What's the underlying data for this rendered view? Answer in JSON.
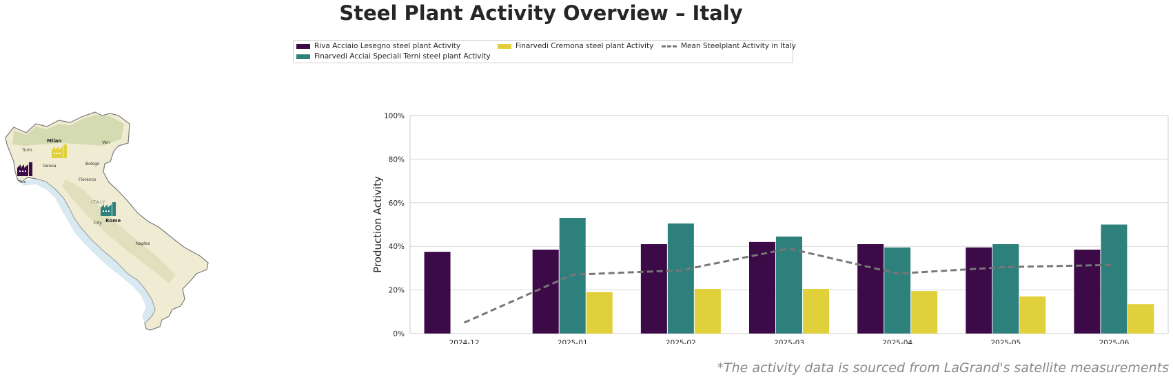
{
  "title": "Steel Plant Activity Overview – Italy",
  "footnote": "*The activity data is sourced from LaGrand's satellite measurements",
  "legend": {
    "items": [
      {
        "label": "Riva Acciaio Lesegno steel plant Activity",
        "color": "#3b0a47",
        "kind": "bar"
      },
      {
        "label": "Finarvedi Acciai Speciali Terni steel plant Activity",
        "color": "#2e807d",
        "kind": "bar"
      },
      {
        "label": "Finarvedi Cremona steel plant Activity",
        "color": "#e0d13c",
        "kind": "bar"
      },
      {
        "label": "Mean Steelplant Activity in Italy",
        "color": "#777777",
        "kind": "dashed-line"
      }
    ]
  },
  "map": {
    "city_labels": [
      "Turin",
      "Milan",
      "Ven",
      "Genoa",
      "Bologn",
      "Florence",
      "Non",
      "ITALY",
      "Rome",
      "City",
      "Naples"
    ],
    "plant_icons": [
      {
        "name": "Riva Acciaio Lesegno",
        "color": "#3b0a47"
      },
      {
        "name": "Finarvedi Cremona",
        "color": "#e0d13c"
      },
      {
        "name": "Finarvedi Acciai Speciali Terni",
        "color": "#2e807d"
      }
    ]
  },
  "chart_data": {
    "type": "bar",
    "ylabel": "Production Activity",
    "xlabel": "",
    "ylim": [
      0,
      100
    ],
    "y_ticks": [
      "0%",
      "20%",
      "40%",
      "60%",
      "80%",
      "100%"
    ],
    "grid": true,
    "categories": [
      "2024-12",
      "2025-01",
      "2025-02",
      "2025-03",
      "2025-04",
      "2025-05",
      "2025-06"
    ],
    "series": [
      {
        "name": "Riva Acciaio Lesegno steel plant Activity",
        "color": "#3b0a47",
        "values": [
          37.5,
          38.5,
          41,
          42,
          41,
          39.5,
          38.5
        ]
      },
      {
        "name": "Finarvedi Acciai Speciali Terni steel plant Activity",
        "color": "#2e807d",
        "values": [
          null,
          53,
          50.5,
          44.5,
          39.5,
          41,
          50
        ]
      },
      {
        "name": "Finarvedi Cremona steel plant Activity",
        "color": "#e0d13c",
        "values": [
          null,
          19,
          20.5,
          20.5,
          19.5,
          17,
          13.5
        ]
      }
    ],
    "line_series": {
      "name": "Mean Steelplant Activity in Italy",
      "color": "#777777",
      "style": "dashed",
      "values": [
        5,
        27,
        29,
        39,
        27.5,
        30.5,
        31.5
      ]
    }
  }
}
